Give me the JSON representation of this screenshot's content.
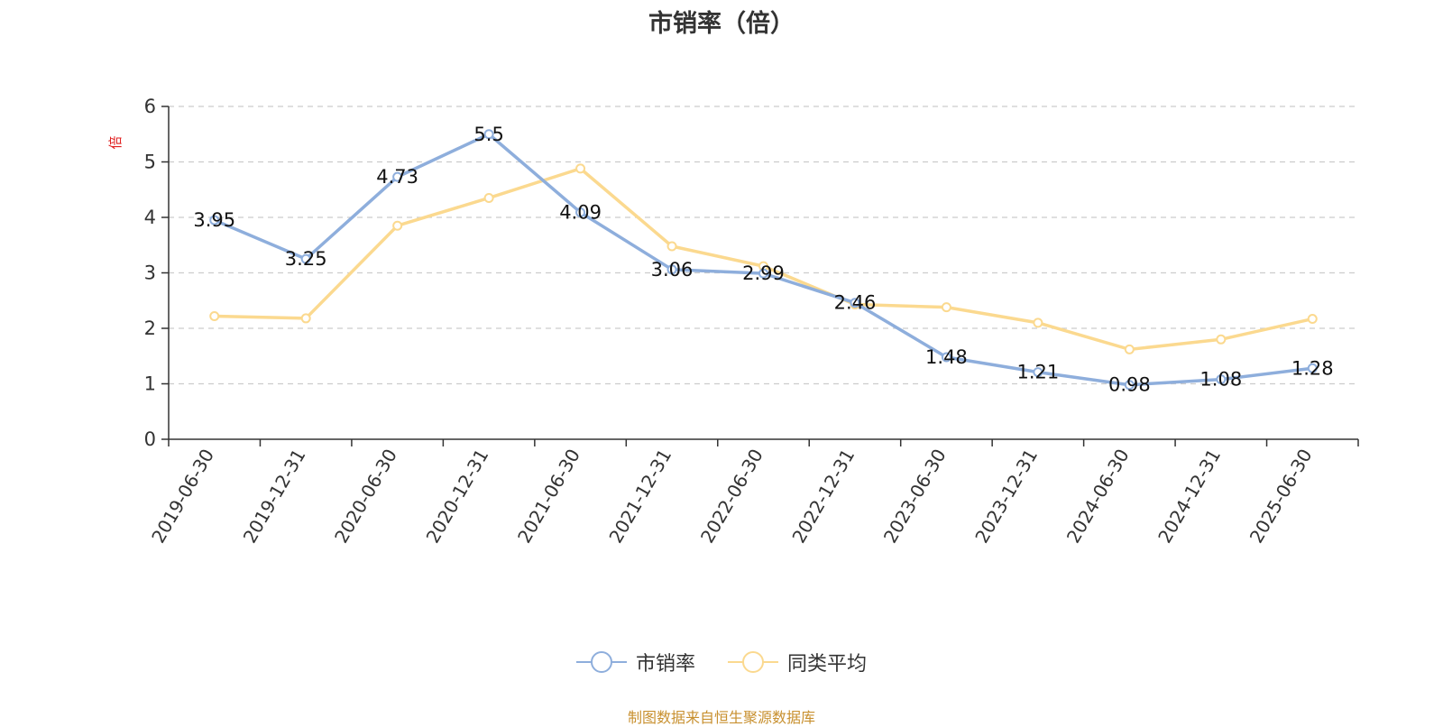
{
  "chart_data": {
    "type": "line",
    "title": "市销率（倍）",
    "ylabel": "倍",
    "xlabel": "",
    "ylim": [
      0,
      6
    ],
    "yticks": [
      0,
      1,
      2,
      3,
      4,
      5,
      6
    ],
    "grid": true,
    "legend_position": "bottom",
    "categories": [
      "2019-06-30",
      "2019-12-31",
      "2020-06-30",
      "2020-12-31",
      "2021-06-30",
      "2021-12-31",
      "2022-06-30",
      "2022-12-31",
      "2023-06-30",
      "2023-12-31",
      "2024-06-30",
      "2024-12-31",
      "2025-06-30"
    ],
    "series": [
      {
        "name": "市销率",
        "color": "#8eaedc",
        "values": [
          3.95,
          3.25,
          4.73,
          5.5,
          4.09,
          3.06,
          2.99,
          2.46,
          1.48,
          1.21,
          0.98,
          1.08,
          1.28
        ],
        "labels": [
          "3.95",
          "3.25",
          "4.73",
          "5.5",
          "4.09",
          "3.06",
          "2.99",
          "2.46",
          "1.48",
          "1.21",
          "0.98",
          "1.08",
          "1.28"
        ]
      },
      {
        "name": "同类平均",
        "color": "#fbd98f",
        "values": [
          2.22,
          2.18,
          3.85,
          4.35,
          4.88,
          3.48,
          3.12,
          2.43,
          2.38,
          2.1,
          1.62,
          1.8,
          2.17
        ]
      }
    ],
    "ylabel_color": "#e02020",
    "source_note": "制图数据来自恒生聚源数据库"
  }
}
